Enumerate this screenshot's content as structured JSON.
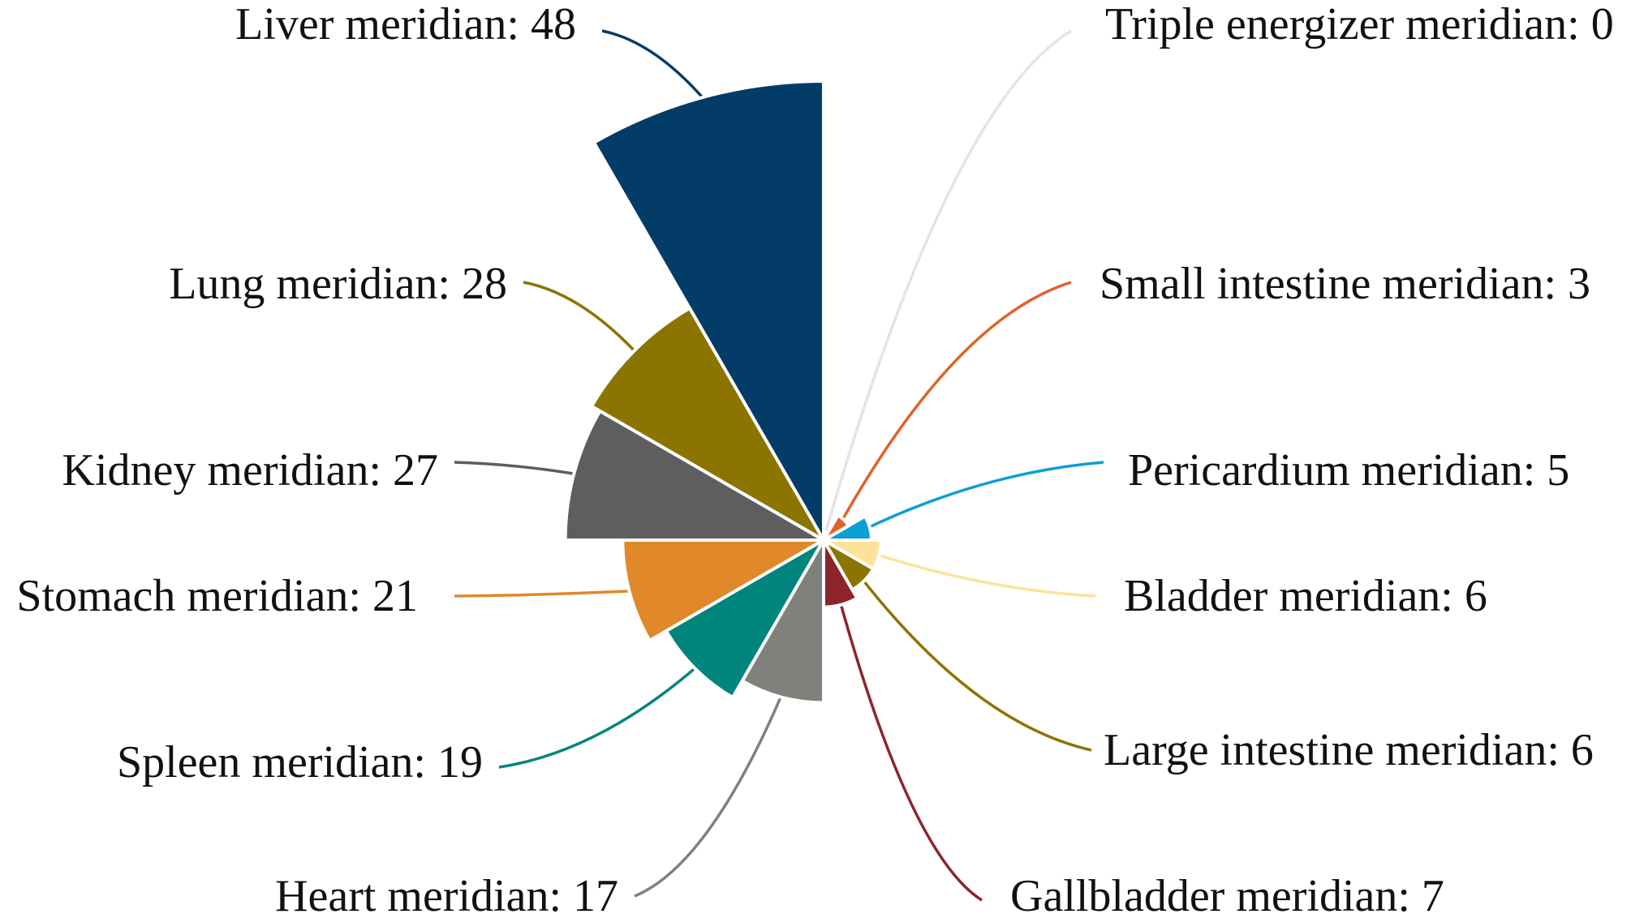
{
  "chart_data": {
    "type": "pie",
    "variant": "nightingale-rose",
    "title": "",
    "label_format": "{name}: {value}",
    "max_value": 48,
    "slices": [
      {
        "name": "Liver meridian",
        "value": 48,
        "color": "#023c67"
      },
      {
        "name": "Lung meridian",
        "value": 28,
        "color": "#8b7400"
      },
      {
        "name": "Kidney meridian",
        "value": 27,
        "color": "#5e5e5e"
      },
      {
        "name": "Stomach meridian",
        "value": 21,
        "color": "#e0882a"
      },
      {
        "name": "Spleen meridian",
        "value": 19,
        "color": "#00857d"
      },
      {
        "name": "Heart meridian",
        "value": 17,
        "color": "#80807c"
      },
      {
        "name": "Gallbladder meridian",
        "value": 7,
        "color": "#8b252b"
      },
      {
        "name": "Large intestine meridian",
        "value": 6,
        "color": "#8b7400"
      },
      {
        "name": "Bladder meridian",
        "value": 6,
        "color": "#fde39a"
      },
      {
        "name": "Pericardium meridian",
        "value": 5,
        "color": "#0b9fd4"
      },
      {
        "name": "Small intestine meridian",
        "value": 3,
        "color": "#e0612c"
      },
      {
        "name": "Triple energizer meridian",
        "value": 0,
        "color": "#e8e8e8"
      }
    ]
  }
}
